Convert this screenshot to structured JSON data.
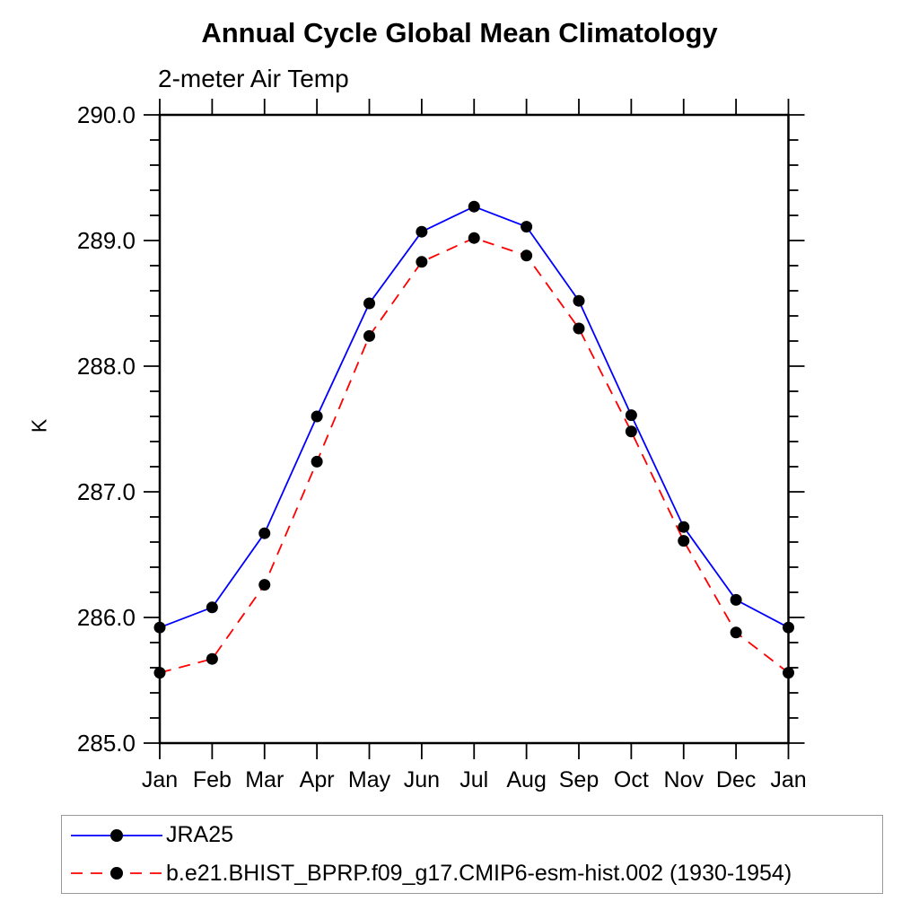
{
  "chart_data": {
    "type": "line",
    "title": "Annual Cycle Global Mean Climatology",
    "subtitle": "2-meter Air Temp",
    "ylabel": "K",
    "xlabel": "",
    "categories": [
      "Jan",
      "Feb",
      "Mar",
      "Apr",
      "May",
      "Jun",
      "Jul",
      "Aug",
      "Sep",
      "Oct",
      "Nov",
      "Dec",
      "Jan"
    ],
    "ylim": [
      285.0,
      290.0
    ],
    "ytick_major_step": 1.0,
    "ytick_minor_step": 0.2,
    "ytick_labels": [
      "285.0",
      "286.0",
      "287.0",
      "288.0",
      "289.0",
      "290.0"
    ],
    "grid": false,
    "frame_color": "#000000",
    "marker_color": "#000000",
    "legend_position": "bottom-left",
    "legend_border_color": "#999999",
    "series": [
      {
        "name": "JRA25",
        "color": "#0000ff",
        "line_style": "solid",
        "marker": "filled-circle",
        "values": [
          285.92,
          286.08,
          286.67,
          287.6,
          288.5,
          289.07,
          289.27,
          289.11,
          288.52,
          287.61,
          286.72,
          286.14,
          285.92
        ]
      },
      {
        "name": "b.e21.BHIST_BPRP.f09_g17.CMIP6-esm-hist.002 (1930-1954)",
        "color": "#ff0000",
        "line_style": "dashed",
        "marker": "filled-circle",
        "values": [
          285.56,
          285.67,
          286.26,
          287.24,
          288.24,
          288.83,
          289.02,
          288.88,
          288.3,
          287.48,
          286.61,
          285.88,
          285.56
        ]
      }
    ]
  }
}
